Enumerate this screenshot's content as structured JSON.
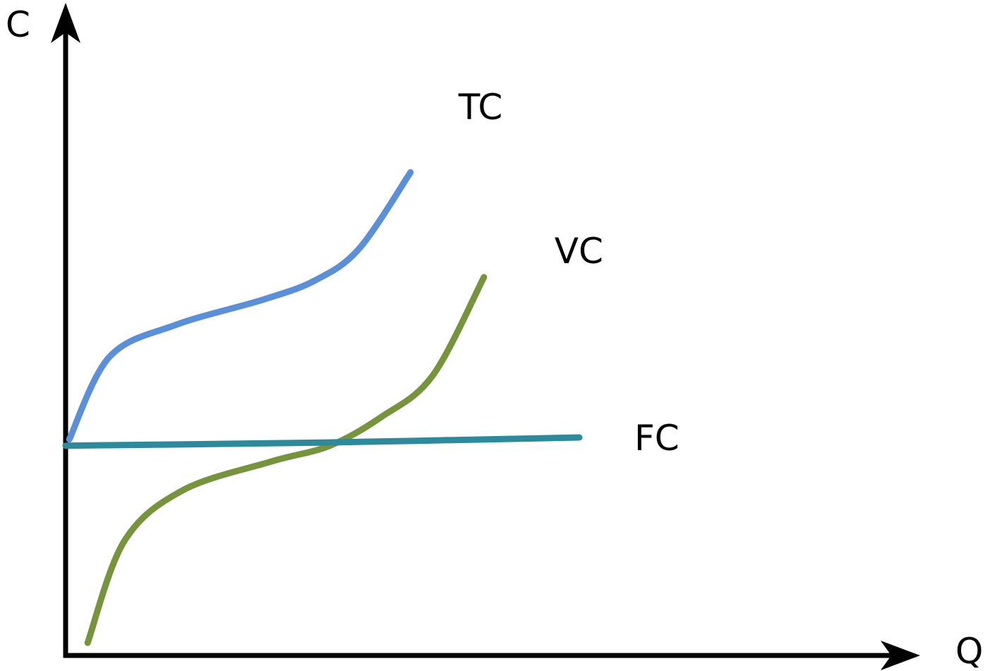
{
  "chart_data": {
    "type": "line",
    "xlabel": "Q",
    "ylabel": "C",
    "xlim": [
      0,
      10
    ],
    "ylim": [
      0,
      10
    ],
    "grid": false,
    "ticks": false,
    "series": [
      {
        "name": "TC",
        "color": "#5b8fd8",
        "points": [
          [
            0.05,
            3.4
          ],
          [
            0.6,
            4.7
          ],
          [
            1.5,
            5.2
          ],
          [
            2.7,
            5.6
          ],
          [
            3.4,
            5.9
          ],
          [
            4.0,
            6.4
          ],
          [
            4.7,
            7.6
          ]
        ]
      },
      {
        "name": "VC",
        "color": "#76943d",
        "points": [
          [
            0.3,
            0.2
          ],
          [
            0.8,
            1.8
          ],
          [
            1.6,
            2.6
          ],
          [
            2.8,
            3.05
          ],
          [
            3.6,
            3.3
          ],
          [
            4.3,
            3.75
          ],
          [
            5.0,
            4.4
          ],
          [
            5.7,
            5.95
          ]
        ]
      },
      {
        "name": "FC",
        "color": "#2e8a9a",
        "points": [
          [
            0.0,
            3.3
          ],
          [
            3.5,
            3.35
          ],
          [
            7.0,
            3.43
          ]
        ]
      }
    ]
  }
}
